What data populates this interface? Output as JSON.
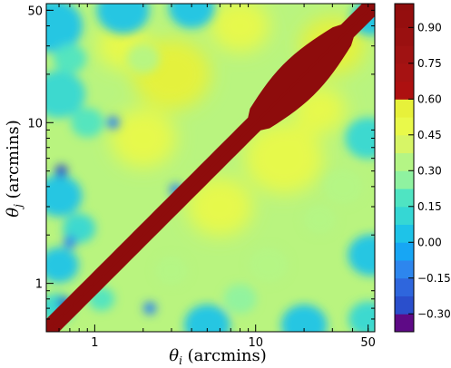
{
  "chart_data": {
    "type": "heatmap",
    "xlabel_symbol": "θ",
    "xlabel_sub": "i",
    "xlabel_unit": "(arcmins)",
    "ylabel_symbol": "θ",
    "ylabel_sub": "j",
    "ylabel_unit": "(arcmins)",
    "xscale": "log",
    "yscale": "log",
    "xlim": [
      0.5,
      55
    ],
    "ylim": [
      0.5,
      55
    ],
    "xticks": [
      1,
      10,
      50
    ],
    "xtick_labels": [
      "1",
      "10",
      "50"
    ],
    "yticks": [
      1,
      10,
      50
    ],
    "ytick_labels": [
      "1",
      "10",
      "50"
    ],
    "grid": false,
    "colorbar": {
      "levels": [
        -0.375,
        -0.3,
        -0.225,
        -0.15,
        -0.075,
        0.0,
        0.075,
        0.15,
        0.225,
        0.3,
        0.375,
        0.45,
        0.525,
        0.6,
        0.675,
        0.75,
        0.825,
        0.9,
        0.975,
        1.0
      ],
      "colors": [
        "#5e0a86",
        "#2a4fcc",
        "#2e66dd",
        "#2d86ee",
        "#17a6f4",
        "#1ec3e8",
        "#35d7d4",
        "#4fe4c2",
        "#8ff2a0",
        "#b4f585",
        "#d7f566",
        "#e9f94a",
        "#e7f13a",
        "#ad1010",
        "#a61212",
        "#a01212",
        "#9a1010",
        "#950e0e",
        "#8e0c0c"
      ],
      "tick_values": [
        0.9,
        0.75,
        0.6,
        0.45,
        0.3,
        0.15,
        0.0,
        -0.15,
        -0.3
      ],
      "tick_labels": [
        "0.90",
        "0.75",
        "0.60",
        "0.45",
        "0.30",
        "0.15",
        "0.00",
        "−0.15",
        "−0.30"
      ],
      "range": [
        -0.375,
        1.0
      ]
    },
    "description_values": {
      "diagonal_value": 1.0,
      "typical_offdiag_range": [
        0.0,
        0.6
      ],
      "min_value": -0.375
    }
  }
}
